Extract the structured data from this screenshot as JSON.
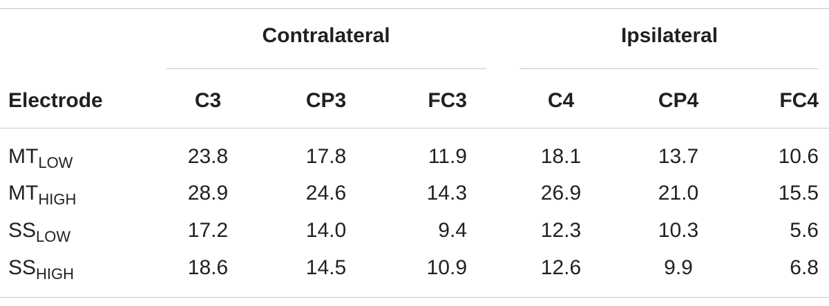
{
  "table": {
    "group_headers": {
      "contralateral": "Contralateral",
      "ipsilateral": "Ipsilateral"
    },
    "header": {
      "electrode": "Electrode",
      "columns": [
        "C3",
        "CP3",
        "FC3",
        "C4",
        "CP4",
        "FC4"
      ]
    },
    "rows": [
      {
        "label": "MT",
        "sub": "LOW",
        "values": [
          "23.8",
          "17.8",
          "11.9",
          "18.1",
          "13.7",
          "10.6"
        ]
      },
      {
        "label": "MT",
        "sub": "HIGH",
        "values": [
          "28.9",
          "24.6",
          "14.3",
          "26.9",
          "21.0",
          "15.5"
        ]
      },
      {
        "label": "SS",
        "sub": "LOW",
        "values": [
          "17.2",
          "14.0",
          "9.4",
          "12.3",
          "10.3",
          "5.6"
        ]
      },
      {
        "label": "SS",
        "sub": "HIGH",
        "values": [
          "18.6",
          "14.5",
          "10.9",
          "12.6",
          "9.9",
          "6.8"
        ]
      }
    ]
  }
}
